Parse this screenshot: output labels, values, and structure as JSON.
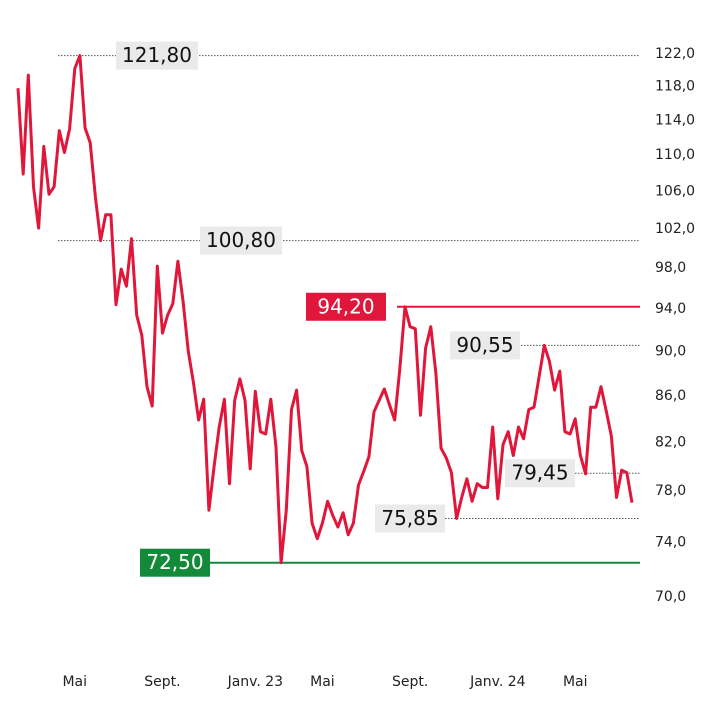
{
  "chart_data": {
    "type": "line",
    "categories": [
      null,
      null,
      null,
      null,
      null,
      null,
      null,
      null,
      null,
      null,
      null,
      "Mai",
      null,
      null,
      null,
      null,
      null,
      null,
      null,
      null,
      null,
      null,
      null,
      null,
      null,
      null,
      null,
      null,
      "Sept.",
      null,
      null,
      null,
      null,
      null,
      null,
      null,
      null,
      null,
      null,
      null,
      null,
      null,
      null,
      null,
      null,
      null,
      "Janv. 23",
      null,
      null,
      null,
      null,
      null,
      null,
      null,
      null,
      null,
      null,
      null,
      null,
      "Mai",
      null,
      null,
      null,
      null,
      null,
      null,
      null,
      null,
      null,
      null,
      null,
      null,
      null,
      null,
      null,
      null,
      "Sept.",
      null,
      null,
      null,
      null,
      null,
      null,
      null,
      null,
      null,
      null,
      null,
      null,
      null,
      null,
      null,
      null,
      "Janv. 24",
      null,
      null,
      null,
      null,
      null,
      null,
      null,
      null,
      null,
      null,
      null,
      null,
      null,
      null,
      "Mai",
      null,
      null,
      null,
      null,
      null,
      null,
      null,
      null,
      null,
      null,
      null
    ],
    "series": [
      {
        "color": "#e0173a",
        "values": [
          117.8,
          107.9,
          119.4,
          106.5,
          102.1,
          111.0,
          105.7,
          106.5,
          112.8,
          110.3,
          113.0,
          120.2,
          121.8,
          113.1,
          111.4,
          105.4,
          100.8,
          103.5,
          103.5,
          94.4,
          97.9,
          96.2,
          101.0,
          93.4,
          91.5,
          86.8,
          85.1,
          98.2,
          91.7,
          93.4,
          94.5,
          98.7,
          94.7,
          90.0,
          87.2,
          83.9,
          85.7,
          76.5,
          80.0,
          83.3,
          85.7,
          78.6,
          85.6,
          87.5,
          85.6,
          79.8,
          86.4,
          82.9,
          82.7,
          85.7,
          81.6,
          72.5,
          76.5,
          84.8,
          86.5,
          81.3,
          80.0,
          75.5,
          74.3,
          75.5,
          77.2,
          76.1,
          75.2,
          76.3,
          74.6,
          75.5,
          78.5,
          79.6,
          80.8,
          84.6,
          85.6,
          86.6,
          85.2,
          83.9,
          88.4,
          94.2,
          92.3,
          92.1,
          84.3,
          90.3,
          92.3,
          88.0,
          81.5,
          80.7,
          79.5,
          75.85,
          77.5,
          79.0,
          77.2,
          78.6,
          78.3,
          78.3,
          83.3,
          77.4,
          81.8,
          82.9,
          80.9,
          83.3,
          82.3,
          84.8,
          85.0,
          87.7,
          90.55,
          89.1,
          86.5,
          88.2,
          82.9,
          82.7,
          84.0,
          80.9,
          79.4,
          85.0,
          85.0,
          86.8,
          84.7,
          82.5,
          77.5,
          79.7,
          79.5,
          77.1
        ]
      }
    ],
    "ylim": [
      70,
      122
    ],
    "log": true,
    "yticks": [
      {
        "value": 70,
        "label": "70,0"
      },
      {
        "value": 74,
        "label": "74,0"
      },
      {
        "value": 78,
        "label": "78,0"
      },
      {
        "value": 82,
        "label": "82,0"
      },
      {
        "value": 86,
        "label": "86,0"
      },
      {
        "value": 90,
        "label": "90,0"
      },
      {
        "value": 94,
        "label": "94,0"
      },
      {
        "value": 98,
        "label": "98,0"
      },
      {
        "value": 102,
        "label": "102,0"
      },
      {
        "value": 106,
        "label": "106,0"
      },
      {
        "value": 110,
        "label": "110,0"
      },
      {
        "value": 114,
        "label": "114,0"
      },
      {
        "value": 118,
        "label": "118,0"
      },
      {
        "value": 122,
        "label": "122,0"
      }
    ],
    "annotations": [
      {
        "value": 121.8,
        "label": "121,80",
        "color": "#eaeaea",
        "text_color": "#111111",
        "line_color": "#555555",
        "dotted": true
      },
      {
        "value": 100.8,
        "label": "100,80",
        "color": "#eaeaea",
        "text_color": "#111111",
        "line_color": "#555555",
        "dotted": true
      },
      {
        "value": 94.2,
        "label": "94,20",
        "color": "#e0173a",
        "text_color": "#ffffff",
        "line_color": "#e0173a",
        "dotted": false
      },
      {
        "value": 90.55,
        "label": "90,55",
        "color": "#eaeaea",
        "text_color": "#111111",
        "line_color": "#555555",
        "dotted": true
      },
      {
        "value": 79.45,
        "label": "79,45",
        "color": "#eaeaea",
        "text_color": "#111111",
        "line_color": "#555555",
        "dotted": true
      },
      {
        "value": 75.85,
        "label": "75,85",
        "color": "#eaeaea",
        "text_color": "#111111",
        "line_color": "#555555",
        "dotted": true
      },
      {
        "value": 72.5,
        "label": "72,50",
        "color": "#13893a",
        "text_color": "#ffffff",
        "line_color": "#13893a",
        "dotted": false
      }
    ]
  }
}
